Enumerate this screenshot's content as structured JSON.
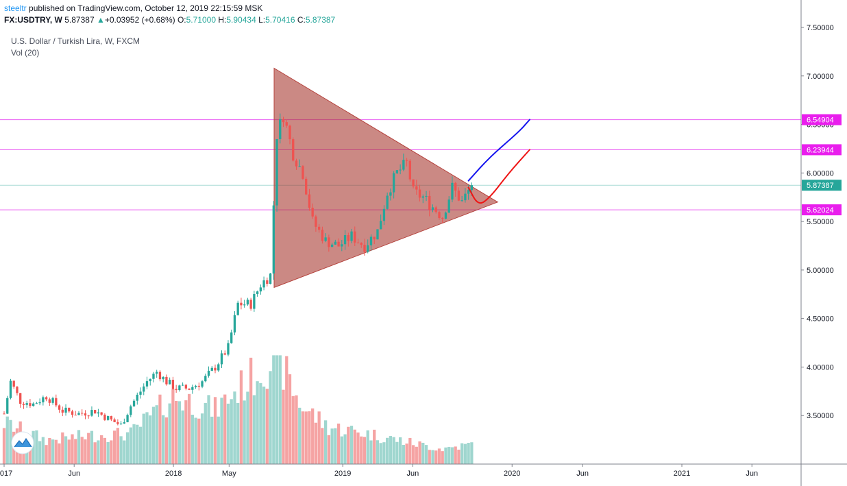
{
  "header": {
    "author": "steeltr",
    "published": "published on TradingView.com, October 12, 2019 22:15:59 MSK"
  },
  "quote": {
    "symbol": "FX:USDTRY, W",
    "last": "5.87387",
    "change": "+0.03952 (+0.68%)",
    "o_label": "O:",
    "o": "5.71000",
    "h_label": "H:",
    "h": "5.90434",
    "l_label": "L:",
    "l": "5.70416",
    "c_label": "C:",
    "c": "5.87387"
  },
  "legend": {
    "title": "U.S. Dollar / Turkish Lira, W, FXCM",
    "volume": "Vol (20)"
  },
  "colors": {
    "up": "#26a69a",
    "down": "#ef5350",
    "vol_up": "#9fd6cf",
    "vol_down": "#f5a3a3",
    "level_line": "#ea5df2",
    "level_tag": "#e91eed",
    "current_tag": "#26a69a",
    "triangle_fill": "#a83a32",
    "triangle_stroke": "#b5443e",
    "bull_path": "#1515ee",
    "bear_path": "#ee1515"
  },
  "chart_data": {
    "type": "candlestick",
    "timeframe": "W",
    "ylim": [
      3.0,
      7.5
    ],
    "yticks": [
      3.5,
      4.0,
      4.5,
      5.0,
      5.5,
      6.0,
      6.5,
      7.0,
      7.5
    ],
    "ytick_labels": [
      "3.50000",
      "4.00000",
      "4.50000",
      "5.00000",
      "5.50000",
      "6.00000",
      "6.50000",
      "7.00000",
      "7.50000"
    ],
    "xlim": [
      "2017-01-01",
      "2021-09-15"
    ],
    "xticks": [
      {
        "date": "2017-01-01",
        "label": "2017"
      },
      {
        "date": "2017-06-01",
        "label": "Jun"
      },
      {
        "date": "2018-01-01",
        "label": "2018"
      },
      {
        "date": "2018-05-01",
        "label": "May"
      },
      {
        "date": "2019-01-01",
        "label": "2019"
      },
      {
        "date": "2019-06-01",
        "label": "Jun"
      },
      {
        "date": "2020-01-01",
        "label": "2020"
      },
      {
        "date": "2020-06-01",
        "label": "Jun"
      },
      {
        "date": "2021-01-01",
        "label": "2021"
      },
      {
        "date": "2021-06-01",
        "label": "Jun"
      }
    ],
    "price_path": [
      [
        "2017-01-01",
        3.52
      ],
      [
        "2017-01-15",
        3.85
      ],
      [
        "2017-02-05",
        3.65
      ],
      [
        "2017-03-05",
        3.62
      ],
      [
        "2017-04-02",
        3.7
      ],
      [
        "2017-05-07",
        3.55
      ],
      [
        "2017-06-11",
        3.52
      ],
      [
        "2017-07-16",
        3.55
      ],
      [
        "2017-08-20",
        3.45
      ],
      [
        "2017-09-10",
        3.4
      ],
      [
        "2017-10-01",
        3.6
      ],
      [
        "2017-11-05",
        3.85
      ],
      [
        "2017-11-26",
        3.95
      ],
      [
        "2017-12-17",
        3.85
      ],
      [
        "2018-01-07",
        3.78
      ],
      [
        "2018-02-04",
        3.78
      ],
      [
        "2018-03-04",
        3.85
      ],
      [
        "2018-04-01",
        4.0
      ],
      [
        "2018-04-29",
        4.2
      ],
      [
        "2018-05-20",
        4.65
      ],
      [
        "2018-06-17",
        4.65
      ],
      [
        "2018-07-08",
        4.85
      ],
      [
        "2018-07-29",
        4.95
      ],
      [
        "2018-08-12",
        6.4
      ],
      [
        "2018-08-26",
        6.6
      ],
      [
        "2018-09-16",
        6.2
      ],
      [
        "2018-10-07",
        6.0
      ],
      [
        "2018-10-28",
        5.5
      ],
      [
        "2018-11-25",
        5.3
      ],
      [
        "2018-12-23",
        5.25
      ],
      [
        "2019-01-20",
        5.35
      ],
      [
        "2019-02-17",
        5.25
      ],
      [
        "2019-03-17",
        5.4
      ],
      [
        "2019-04-07",
        5.8
      ],
      [
        "2019-04-28",
        6.0
      ],
      [
        "2019-05-19",
        6.1
      ],
      [
        "2019-06-02",
        5.8
      ],
      [
        "2019-06-23",
        5.75
      ],
      [
        "2019-07-14",
        5.65
      ],
      [
        "2019-08-04",
        5.55
      ],
      [
        "2019-08-25",
        5.85
      ],
      [
        "2019-09-15",
        5.7
      ],
      [
        "2019-10-06",
        5.87
      ]
    ],
    "volume_path": [
      [
        "2017-01-01",
        0.38
      ],
      [
        "2017-04-01",
        0.22
      ],
      [
        "2017-07-01",
        0.26
      ],
      [
        "2017-10-01",
        0.28
      ],
      [
        "2018-01-01",
        0.62
      ],
      [
        "2018-04-01",
        0.5
      ],
      [
        "2018-08-12",
        1.0
      ],
      [
        "2018-10-01",
        0.55
      ],
      [
        "2018-12-01",
        0.34
      ],
      [
        "2019-02-01",
        0.3
      ],
      [
        "2019-05-01",
        0.22
      ],
      [
        "2019-08-01",
        0.14
      ],
      [
        "2019-10-06",
        0.18
      ]
    ],
    "last_price": 5.87387,
    "levels": [
      {
        "value": 6.54904,
        "label": "6.54904"
      },
      {
        "value": 6.23944,
        "label": "6.23944"
      },
      {
        "value": 5.62024,
        "label": "5.62024"
      }
    ],
    "current_label": "5.87387",
    "annotations": {
      "triangle": [
        [
          "2018-08-06",
          7.08
        ],
        [
          "2018-08-06",
          4.82
        ],
        [
          "2019-12-01",
          5.7
        ]
      ],
      "bull_projection": [
        [
          "2019-09-29",
          5.92
        ],
        [
          "2019-11-15",
          6.17
        ],
        [
          "2020-01-15",
          6.42
        ],
        [
          "2020-02-08",
          6.55
        ]
      ],
      "bear_projection": [
        [
          "2019-09-29",
          5.85
        ],
        [
          "2019-10-20",
          5.66
        ],
        [
          "2019-11-15",
          5.75
        ],
        [
          "2019-12-25",
          6.0
        ],
        [
          "2020-02-08",
          6.24
        ]
      ]
    }
  }
}
